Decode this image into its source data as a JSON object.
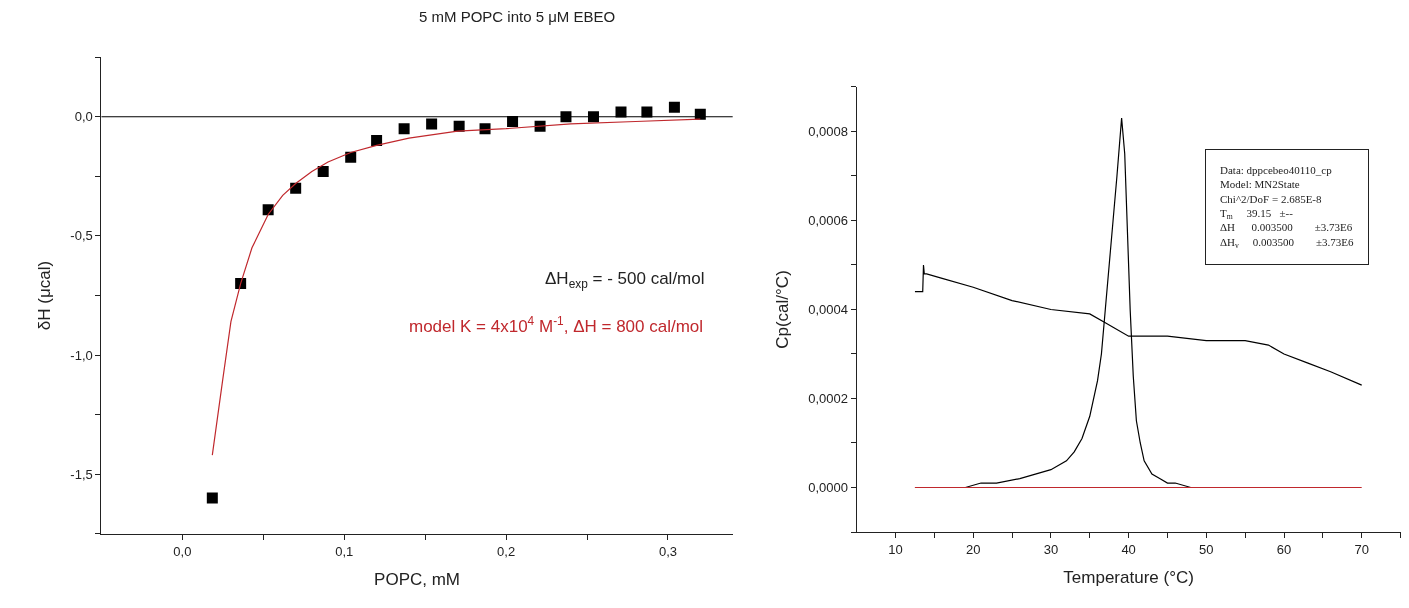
{
  "chart_data": [
    {
      "type": "scatter",
      "title": "5 mM POPC into 5 μM EBEO",
      "xlabel": "POPC, mM",
      "ylabel": "δH (μcal)",
      "xlim": [
        -0.05,
        0.34
      ],
      "xticks": [
        {
          "value": 0,
          "label": "0,0"
        },
        {
          "value": 0.05,
          "label": null
        },
        {
          "value": 0.1,
          "label": "0,1"
        },
        {
          "value": 0.15,
          "label": null
        },
        {
          "value": 0.2,
          "label": "0,2"
        },
        {
          "value": 0.25,
          "label": null
        },
        {
          "value": 0.3,
          "label": "0,3"
        }
      ],
      "ylim": [
        -1.75,
        0.25
      ],
      "yticks": [
        {
          "value": -1.75,
          "label": null
        },
        {
          "value": -1.5,
          "label": "-1,5"
        },
        {
          "value": -1.25,
          "label": null
        },
        {
          "value": -1.0,
          "label": "-1,0"
        },
        {
          "value": -0.75,
          "label": null
        },
        {
          "value": -0.5,
          "label": "-0,5"
        },
        {
          "value": -0.25,
          "label": null
        },
        {
          "value": 0,
          "label": "0,0"
        },
        {
          "value": 0.25,
          "label": null
        }
      ],
      "series": [
        {
          "type": "scatter",
          "marker": "square",
          "color": "#000000",
          "x": [
            0.0185,
            0.036,
            0.053,
            0.07,
            0.087,
            0.104,
            0.12,
            0.137,
            0.154,
            0.171,
            0.187,
            0.204,
            0.221,
            0.237,
            0.254,
            0.271,
            0.287,
            0.304,
            0.32
          ],
          "values": [
            -1.6,
            -0.7,
            -0.39,
            -0.3,
            -0.23,
            -0.17,
            -0.1,
            -0.05,
            -0.03,
            -0.04,
            -0.05,
            -0.02,
            -0.04,
            0.0,
            0.0,
            0.02,
            0.02,
            0.04,
            0.01
          ]
        },
        {
          "type": "line",
          "marker": "none",
          "name": "model K = 4x10$^{4}$ M$^{-1}$, ΔH = 800 cal/mol",
          "color": "#c0282d",
          "x": [
            0.0185,
            0.025,
            0.03,
            0.036,
            0.043,
            0.053,
            0.062,
            0.07,
            0.08,
            0.09,
            0.104,
            0.12,
            0.14,
            0.17,
            0.2,
            0.24,
            0.28,
            0.32
          ],
          "values": [
            -1.42,
            -1.1,
            -0.86,
            -0.7,
            -0.55,
            -0.41,
            -0.33,
            -0.28,
            -0.23,
            -0.19,
            -0.15,
            -0.12,
            -0.09,
            -0.06,
            -0.05,
            -0.03,
            -0.02,
            -0.01
          ]
        }
      ],
      "ref_lines": [
        {
          "axis": "y",
          "value": 0,
          "color": "#000000"
        }
      ],
      "annotations": [
        "ΔH$_{exp}$ = - 500 cal/mol"
      ]
    },
    {
      "type": "line",
      "xlabel": "Temperature (°C)",
      "ylabel": "Cp(cal/°C)",
      "xlim": [
        5,
        75
      ],
      "xticks": [
        10,
        {
          "value": 15,
          "label": null
        },
        20,
        {
          "value": 25,
          "label": null
        },
        30,
        {
          "value": 35,
          "label": null
        },
        40,
        {
          "value": 45,
          "label": null
        },
        50,
        {
          "value": 55,
          "label": null
        },
        60,
        {
          "value": 65,
          "label": null
        },
        70,
        {
          "value": 75,
          "label": null
        }
      ],
      "ylim": [
        -0.0001,
        0.0009
      ],
      "yticks": [
        {
          "value": -0.0001,
          "label": null
        },
        {
          "value": 0,
          "label": "0,0000"
        },
        {
          "value": 0.0001,
          "label": null
        },
        {
          "value": 0.0002,
          "label": "0,0002"
        },
        {
          "value": 0.0003,
          "label": null
        },
        {
          "value": 0.0004,
          "label": "0,0004"
        },
        {
          "value": 0.0005,
          "label": null
        },
        {
          "value": 0.0006,
          "label": "0,0006"
        },
        {
          "value": 0.0007,
          "label": null
        },
        {
          "value": 0.0008,
          "label": "0,0008"
        },
        {
          "value": 0.0009,
          "label": null
        }
      ],
      "marker": "none",
      "series": [
        {
          "color": "#000000",
          "x": [
            12.5,
            13.5,
            13.6,
            13.7,
            14,
            16,
            20,
            25,
            30,
            35,
            37,
            38,
            40,
            42,
            45,
            50,
            55,
            58,
            60,
            63,
            66,
            70
          ],
          "values": [
            0.00044,
            0.00044,
            0.0005,
            0.00048,
            0.00048,
            0.00047,
            0.00045,
            0.00042,
            0.0004,
            0.00039,
            0.00037,
            0.00036,
            0.00034,
            0.00034,
            0.00034,
            0.00033,
            0.00033,
            0.00032,
            0.0003,
            0.00028,
            0.00026,
            0.00023
          ]
        },
        {
          "color": "#000000",
          "x": [
            12.5,
            16,
            19,
            21,
            23,
            26,
            28,
            30,
            32,
            33,
            34,
            35,
            36,
            36.5,
            37,
            37.5,
            38,
            38.5,
            39.1,
            39.5,
            39.8,
            40.2,
            40.6,
            41,
            41.5,
            42,
            43,
            44,
            45,
            46,
            48,
            55
          ],
          "values": [
            0,
            0,
            0,
            1e-05,
            1e-05,
            2e-05,
            3e-05,
            4e-05,
            6e-05,
            8e-05,
            0.00011,
            0.00016,
            0.00024,
            0.0003,
            0.0004,
            0.0005,
            0.0006,
            0.0007,
            0.00083,
            0.00075,
            0.0006,
            0.0004,
            0.00025,
            0.00015,
            0.0001,
            6e-05,
            3e-05,
            2e-05,
            1e-05,
            1e-05,
            0,
            0
          ]
        },
        {
          "color": "#c0282d",
          "x": [
            12.5,
            70
          ],
          "values": [
            0,
            0
          ]
        }
      ],
      "annotations": [
        "Data: dppcebeo40110_cp\nModel: MN2State\nChi^2/DoF = 2.685E-8\nT$_{m}$     39.15   ±--\nΔH      0.003500        ±3.73E6\nΔH$_{v}$     0.003500        ±3.73E6"
      ]
    }
  ]
}
